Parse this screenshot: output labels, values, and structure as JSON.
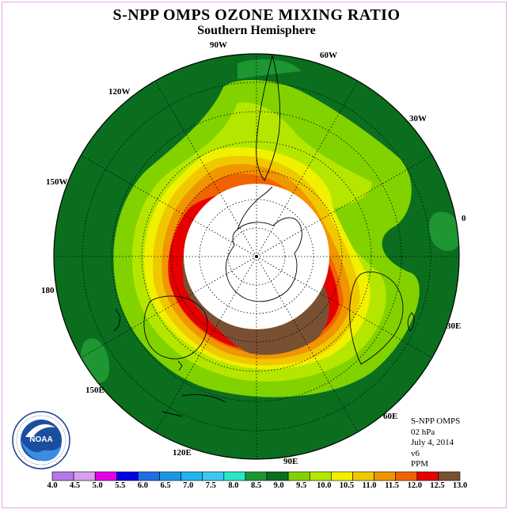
{
  "title": "S-NPP OMPS OZONE MIXING RATIO",
  "subtitle": "Southern Hemisphere",
  "longitude_labels": [
    "90W",
    "60W",
    "30W",
    "0",
    "30E",
    "60E",
    "90E",
    "120E",
    "150E",
    "180",
    "150W",
    "120W"
  ],
  "info": {
    "instrument": "S-NPP OMPS",
    "level": "02 hPa",
    "date": "July 4, 2014",
    "version": "v6",
    "units": "PPM"
  },
  "logo": {
    "name": "noaa-logo",
    "text": "NOAA",
    "ring_text": "NATIONAL OCEANIC AND ATMOSPHERIC ADMINISTRATION · U.S. DEPARTMENT OF COMMERCE"
  },
  "colorbar": {
    "labels": [
      "4.0",
      "4.5",
      "5.0",
      "5.5",
      "6.0",
      "6.5",
      "7.0",
      "7.5",
      "8.0",
      "8.5",
      "9.0",
      "9.5",
      "10.0",
      "10.5",
      "11.0",
      "11.5",
      "12.0",
      "12.5",
      "13.0"
    ],
    "colors": [
      "#b478e8",
      "#d8a0f0",
      "#e600e6",
      "#0000e6",
      "#1e6ee6",
      "#1e96e6",
      "#20b4f0",
      "#3cc8f0",
      "#28e6c8",
      "#1e9632",
      "#0a6e1e",
      "#82d200",
      "#b4e600",
      "#f0f000",
      "#f0c800",
      "#f09600",
      "#f06400",
      "#e60000",
      "#7a5032"
    ]
  },
  "colors": {
    "ocean_background": "#0a6e1e",
    "no_data_polar": "#ffffff",
    "highest_level": "#7a5032"
  }
}
